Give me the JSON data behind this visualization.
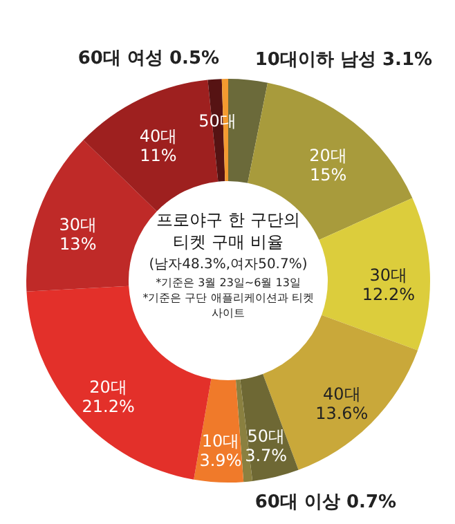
{
  "chart_data": {
    "type": "donut",
    "title": "프로야구 한 구단의 티켓 구매 비율",
    "subtitle": "(남자48.3%,여자50.7%)",
    "annotations": [
      "*기준은 3월 23일~6월 13일",
      "*기준은 구단 애플리케이션과 티켓 사이트"
    ],
    "categories": [
      "10대이하 남성",
      "20대",
      "30대",
      "40대",
      "50대",
      "60대 이상",
      "10대",
      "20대",
      "30대",
      "40대",
      "50대",
      "60대 여성"
    ],
    "values": [
      3.1,
      15,
      12.2,
      13.6,
      3.7,
      0.7,
      3.9,
      21.2,
      13,
      11,
      1.1,
      0.5
    ],
    "value_labels": [
      "3.1%",
      "15%",
      "12.2%",
      "13.6%",
      "3.7%",
      "0.7%",
      "3.9%",
      "21.2%",
      "13%",
      "11%",
      null,
      "0.5%"
    ],
    "colors": [
      "#6b6a3a",
      "#a89b3c",
      "#dccd3c",
      "#c9a83a",
      "#6e6834",
      "#8a8040",
      "#f07a2a",
      "#e3302a",
      "#bf2a28",
      "#9e201f",
      "#561313",
      "#f39a30"
    ],
    "legend": false
  }
}
